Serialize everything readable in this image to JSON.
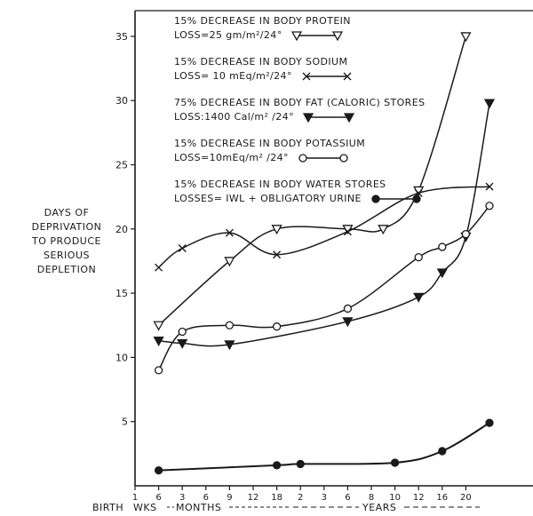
{
  "chart_data": {
    "type": "line",
    "ylabel_lines": [
      "DAYS OF",
      "DEPRIVATION",
      "TO PRODUCE",
      "SERIOUS",
      "DEPLETION"
    ],
    "ylim": [
      0,
      37
    ],
    "y_ticks": [
      5,
      10,
      15,
      20,
      25,
      30,
      35
    ],
    "x_ticks": [
      "1",
      "6",
      "3",
      "6",
      "9",
      "12",
      "18",
      "2",
      "3",
      "6",
      "8",
      "10",
      "12",
      "16",
      "20"
    ],
    "x_groups": [
      "BIRTH",
      "WKS",
      "MONTHS",
      "YEARS"
    ],
    "grid": false,
    "series": [
      {
        "name": "15% DECREASE IN BODY PROTEIN",
        "detail": "LOSS=25 gm/m²/24°",
        "marker": "triangle-down-open",
        "points": [
          [
            1,
            12.5
          ],
          [
            4,
            17.5
          ],
          [
            6,
            20
          ],
          [
            9,
            20
          ],
          [
            10.5,
            20
          ],
          [
            12,
            23
          ],
          [
            14,
            35
          ]
        ]
      },
      {
        "name": "15% DECREASE IN BODY SODIUM",
        "detail": "LOSS= 10 mEq/m²/24°",
        "marker": "x",
        "points": [
          [
            1,
            17
          ],
          [
            2,
            18.5
          ],
          [
            4,
            19.7
          ],
          [
            6,
            18
          ],
          [
            9,
            19.8
          ],
          [
            12,
            22.8
          ],
          [
            15,
            23.3
          ]
        ]
      },
      {
        "name": "75% DECREASE IN BODY FAT (CALORIC) STORES",
        "detail": "LOSS:1400 Cal/m² /24°",
        "marker": "triangle-down-filled",
        "points": [
          [
            1,
            11.3
          ],
          [
            2,
            11.1
          ],
          [
            4,
            11
          ],
          [
            9,
            12.8
          ],
          [
            12,
            14.7
          ],
          [
            13,
            16.6
          ],
          [
            14,
            19.4
          ],
          [
            15,
            29.8
          ]
        ]
      },
      {
        "name": "15% DECREASE IN BODY POTASSIUM",
        "detail": "LOSS=10mEq/m² /24°",
        "marker": "circle-open",
        "points": [
          [
            1,
            9
          ],
          [
            2,
            12
          ],
          [
            4,
            12.5
          ],
          [
            6,
            12.4
          ],
          [
            9,
            13.8
          ],
          [
            12,
            17.8
          ],
          [
            13,
            18.6
          ],
          [
            14,
            19.6
          ],
          [
            15,
            21.8
          ]
        ]
      },
      {
        "name": "15% DECREASE IN BODY WATER STORES",
        "detail": "LOSSES= IWL + OBLIGATORY URINE",
        "marker": "circle-filled",
        "points": [
          [
            1,
            1.2
          ],
          [
            6,
            1.6
          ],
          [
            7,
            1.7
          ],
          [
            11,
            1.8
          ],
          [
            13,
            2.7
          ],
          [
            15,
            4.9
          ]
        ]
      }
    ]
  },
  "legend_items": [
    {
      "line1": "15% DECREASE IN BODY PROTEIN",
      "line2": "LOSS=25 gm/m²/24°",
      "marker": "triangle-down-open"
    },
    {
      "line1": "15% DECREASE IN BODY SODIUM",
      "line2": "LOSS= 10 mEq/m²/24°",
      "marker": "x"
    },
    {
      "line1": "75% DECREASE IN BODY FAT (CALORIC) STORES",
      "line2": "LOSS:1400 Cal/m² /24°",
      "marker": "triangle-down-filled"
    },
    {
      "line1": "15% DECREASE IN BODY POTASSIUM",
      "line2": "LOSS=10mEq/m² /24°",
      "marker": "circle-open"
    },
    {
      "line1": "15% DECREASE IN BODY WATER STORES",
      "line2": "LOSSES= IWL + OBLIGATORY URINE",
      "marker": "circle-filled"
    }
  ],
  "colors": {
    "ink": "#1a1a1a",
    "background": "#ffffff"
  }
}
